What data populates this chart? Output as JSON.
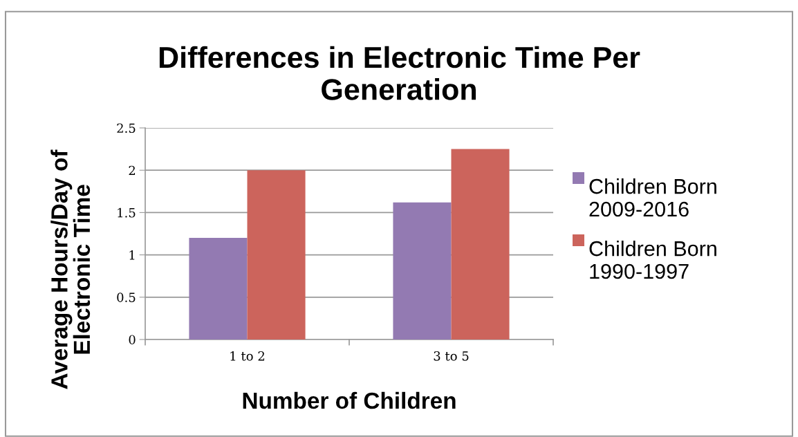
{
  "chart_data": {
    "type": "bar",
    "title": "Differences in Electronic Time Per Generation",
    "xlabel": "Number of Children",
    "ylabel": "Average Hours/Day of Electronic Time",
    "categories": [
      "1 to 2",
      "3 to 5"
    ],
    "series": [
      {
        "name": "Children Born 2009-2016",
        "color": "#937ab2",
        "values": [
          1.2,
          1.62
        ]
      },
      {
        "name": "Children Born 1990-1997",
        "color": "#cc645c",
        "values": [
          2.0,
          2.25
        ]
      }
    ],
    "ylim": [
      0,
      2.5
    ],
    "yticks": [
      0,
      0.5,
      1,
      1.5,
      2,
      2.5
    ],
    "grid": "y",
    "legend": "right"
  }
}
